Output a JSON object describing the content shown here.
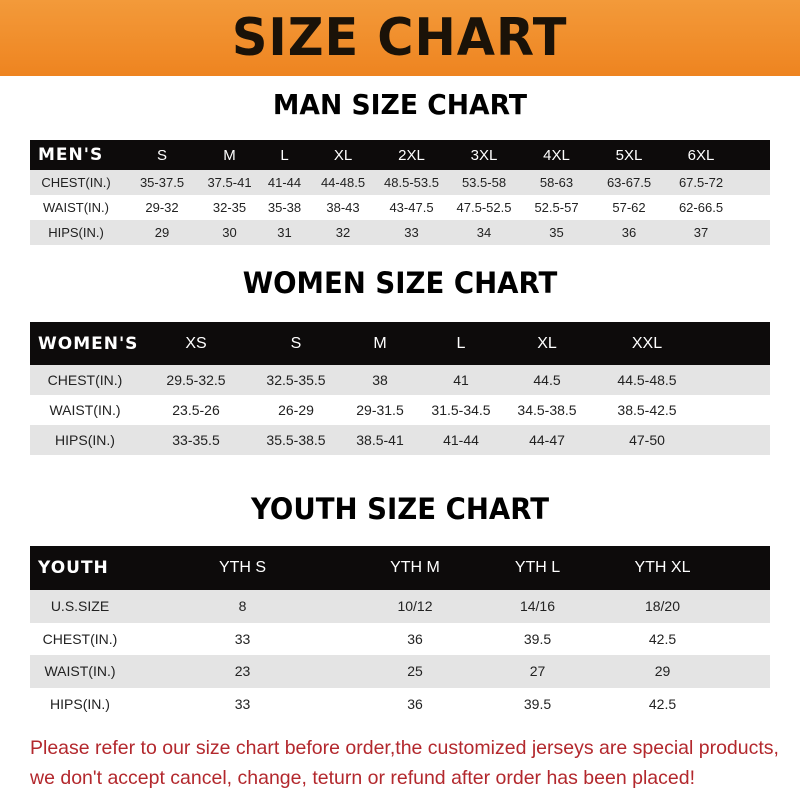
{
  "title": "SIZE CHART",
  "men": {
    "title": "MAN SIZE CHART",
    "header": [
      "MEN'S",
      "S",
      "M",
      "L",
      "XL",
      "2XL",
      "3XL",
      "4XL",
      "5XL",
      "6XL"
    ],
    "rows": [
      [
        "CHEST(IN.)",
        "35-37.5",
        "37.5-41",
        "41-44",
        "44-48.5",
        "48.5-53.5",
        "53.5-58",
        "58-63",
        "63-67.5",
        "67.5-72"
      ],
      [
        "WAIST(IN.)",
        "29-32",
        "32-35",
        "35-38",
        "38-43",
        "43-47.5",
        "47.5-52.5",
        "52.5-57",
        "57-62",
        "62-66.5"
      ],
      [
        "HIPS(IN.)",
        "29",
        "30",
        "31",
        "32",
        "33",
        "34",
        "35",
        "36",
        "37"
      ]
    ]
  },
  "women": {
    "title": "WOMEN SIZE CHART",
    "header": [
      "WOMEN'S",
      "XS",
      "S",
      "M",
      "L",
      "XL",
      "XXL"
    ],
    "rows": [
      [
        "CHEST(IN.)",
        "29.5-32.5",
        "32.5-35.5",
        "38",
        "41",
        "44.5",
        "44.5-48.5"
      ],
      [
        "WAIST(IN.)",
        "23.5-26",
        "26-29",
        "29-31.5",
        "31.5-34.5",
        "34.5-38.5",
        "38.5-42.5"
      ],
      [
        "HIPS(IN.)",
        "33-35.5",
        "35.5-38.5",
        "38.5-41",
        "41-44",
        "44-47",
        "47-50"
      ]
    ]
  },
  "youth": {
    "title": "YOUTH SIZE CHART",
    "header": [
      "YOUTH",
      "YTH S",
      "YTH M",
      "YTH L",
      "YTH XL"
    ],
    "rows": [
      [
        "U.S.SIZE",
        "8",
        "10/12",
        "14/16",
        "18/20"
      ],
      [
        "CHEST(IN.)",
        "33",
        "36",
        "39.5",
        "42.5"
      ],
      [
        "WAIST(IN.)",
        "23",
        "25",
        "27",
        "29"
      ],
      [
        "HIPS(IN.)",
        "33",
        "36",
        "39.5",
        "42.5"
      ]
    ]
  },
  "notice": {
    "line1": "Please refer to our size chart before order,the customized jerseys are special products,",
    "line2": "we don't accept cancel, change, teturn or refund after order has been placed!"
  },
  "colors": {
    "banner": "#ee8420",
    "header_row": "#0d0b0b",
    "notice": "#b3282d"
  }
}
